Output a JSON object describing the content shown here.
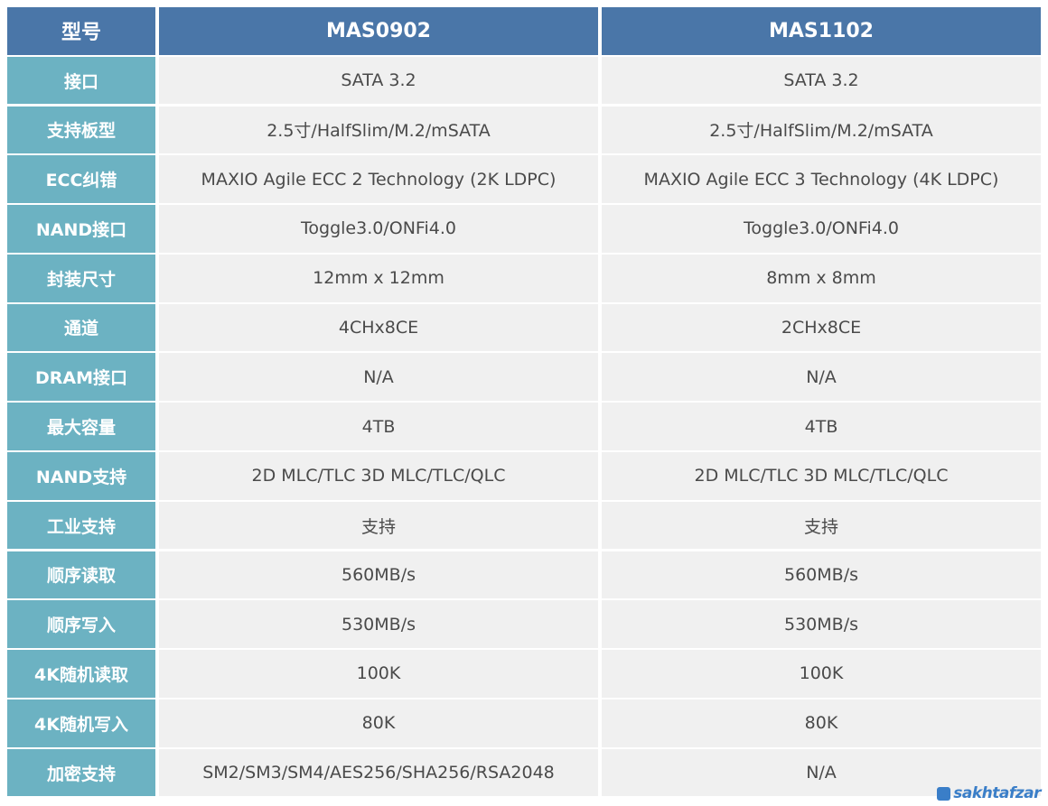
{
  "table": {
    "header": [
      "型号",
      "MAS0902",
      "MAS1102"
    ],
    "rows": [
      {
        "label": "接口",
        "mas0902": "SATA 3.2",
        "mas1102": "SATA 3.2"
      },
      {
        "label": "支持板型",
        "mas0902": "2.5寸/HalfSlim/M.2/mSATA",
        "mas1102": "2.5寸/HalfSlim/M.2/mSATA"
      },
      {
        "label": "ECC纠错",
        "mas0902": "MAXIO Agile ECC 2 Technology (2K LDPC)",
        "mas1102": "MAXIO Agile ECC 3 Technology (4K LDPC)"
      },
      {
        "label": "NAND接口",
        "mas0902": "Toggle3.0/ONFi4.0",
        "mas1102": "Toggle3.0/ONFi4.0"
      },
      {
        "label": "封装尺寸",
        "mas0902": "12mm x 12mm",
        "mas1102": "8mm x 8mm"
      },
      {
        "label": "通道",
        "mas0902": "4CHx8CE",
        "mas1102": "2CHx8CE"
      },
      {
        "label": "DRAM接口",
        "mas0902": "N/A",
        "mas1102": "N/A"
      },
      {
        "label": "最大容量",
        "mas0902": "4TB",
        "mas1102": "4TB"
      },
      {
        "label": "NAND支持",
        "mas0902": "2D MLC/TLC 3D MLC/TLC/QLC",
        "mas1102": "2D MLC/TLC 3D MLC/TLC/QLC"
      },
      {
        "label": "工业支持",
        "mas0902": "支持",
        "mas1102": "支持"
      },
      {
        "label": "顺序读取",
        "mas0902": "560MB/s",
        "mas1102": "560MB/s"
      },
      {
        "label": "顺序写入",
        "mas0902": "530MB/s",
        "mas1102": "530MB/s"
      },
      {
        "label": "4K随机读取",
        "mas0902": "100K",
        "mas1102": "100K"
      },
      {
        "label": "4K随机写入",
        "mas0902": "80K",
        "mas1102": "80K"
      },
      {
        "label": "加密支持",
        "mas0902": "SM2/SM3/SM4/AES256/SHA256/RSA2048",
        "mas1102": "N/A"
      }
    ]
  },
  "watermark": {
    "text": "sakhtafzar",
    "icon": "sakhtafzar-logo-icon"
  },
  "colors": {
    "header_bg": "#4a76a8",
    "label_bg": "#6cb2c2",
    "cell_bg": "#f0f0f0",
    "cell_text": "#4a4a4a",
    "watermark": "#3a7ec8"
  }
}
